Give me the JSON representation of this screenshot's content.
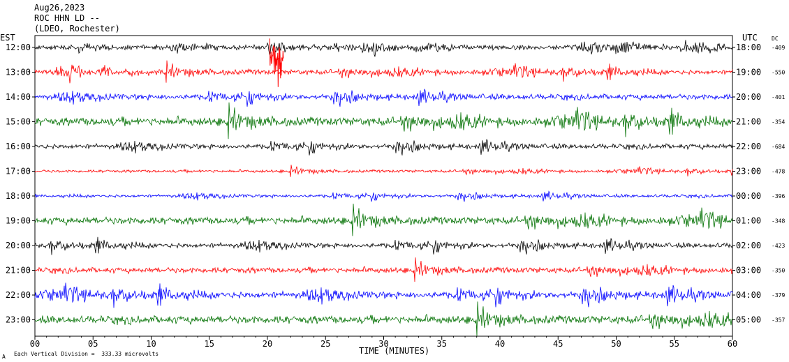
{
  "header": {
    "date": "Aug26,2023",
    "station": "ROC HHN LD --",
    "network": "(LDEO, Rochester)"
  },
  "left_axis_label": "EST",
  "right_axis_label": "UTC",
  "dc_label": "DC",
  "footer": {
    "scale_text": "Each Vertical Division =  333.33 microvolts",
    "corner_mark": "A"
  },
  "chart_data": {
    "type": "line",
    "title": "",
    "xlabel": "TIME (MINUTES)",
    "ylabel": "",
    "xlim": [
      0,
      60
    ],
    "x_ticks": [
      "00",
      "05",
      "10",
      "15",
      "20",
      "25",
      "30",
      "35",
      "40",
      "45",
      "50",
      "55",
      "60"
    ],
    "y_ticks_left": [
      "12:00",
      "13:00",
      "14:00",
      "15:00",
      "16:00",
      "17:00",
      "18:00",
      "19:00",
      "20:00",
      "21:00",
      "22:00",
      "23:00"
    ],
    "y_ticks_right": [
      "18:00",
      "19:00",
      "20:00",
      "21:00",
      "22:00",
      "23:00",
      "00:00",
      "01:00",
      "02:00",
      "03:00",
      "04:00",
      "05:00"
    ],
    "dc_values": [
      "-409",
      "-550",
      "-401",
      "-354",
      "-684",
      "-478",
      "-396",
      "-348",
      "-423",
      "-350",
      "-379",
      "-357"
    ],
    "trace_colors": [
      "#000000",
      "#ff0000",
      "#0000ff",
      "#007000"
    ],
    "trace_amplitude": [
      0.5,
      0.55,
      0.6,
      0.9,
      0.55,
      0.3,
      0.35,
      0.8,
      0.55,
      0.6,
      0.75,
      0.85
    ],
    "grid": false,
    "legend": "none"
  }
}
